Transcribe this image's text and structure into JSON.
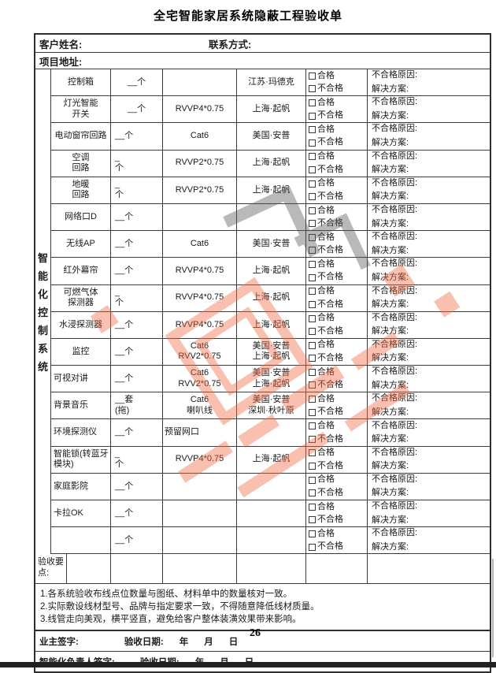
{
  "title": "全宅智能家居系统隐蔽工程验收单",
  "header": {
    "customer_label": "客户姓名:",
    "contact_label": "联系方式:",
    "address_label": "项目地址:"
  },
  "system_label": "智能化控制系统",
  "check": {
    "pass": "合格",
    "fail": "不合格"
  },
  "reason": {
    "line1": "不合格原因:",
    "line2": "解决方案:"
  },
  "rows": [
    {
      "device": "控制箱",
      "qty": "__个",
      "cable": "",
      "brand": "江苏·玛德克",
      "qty_center": true
    },
    {
      "device": "灯光智能\n开关",
      "qty": "__个",
      "cable": "RVVP4*0.75",
      "brand": "上海·起帆",
      "qty_center": true
    },
    {
      "device": "电动窗帘回路",
      "qty": "__个",
      "cable": "Cat6",
      "brand": "美国·安普"
    },
    {
      "device": "空调\n回路",
      "qty": "_\n个",
      "cable": "RVVP2*0.75",
      "brand": "上海·起帆"
    },
    {
      "device": "地暖\n回路",
      "qty": "_\n个",
      "cable": "RVVP2*0.75",
      "brand": "上海·起帆"
    },
    {
      "device": "网络口D",
      "qty": "__个",
      "cable": "",
      "brand": ""
    },
    {
      "device": "无线AP",
      "qty": "__个",
      "cable": "Cat6",
      "brand": "美国·安普"
    },
    {
      "device": "红外幕帘",
      "qty": "__个",
      "cable": "RVVP4*0.75",
      "brand": "上海·起帆"
    },
    {
      "device": "可燃气体\n探测器",
      "qty": "_\n个",
      "cable": "RVVP4*0.75",
      "brand": "上海·起帆"
    },
    {
      "device": "水浸探测器",
      "qty": "__个",
      "cable": "RVVP4*0.75",
      "brand": "上海·起帆"
    },
    {
      "device": "监控",
      "qty": "__个",
      "cable": "Cat6\nRVV2*0.75",
      "brand": "美国·安普\n上海·起帆"
    },
    {
      "device": "可视对讲",
      "qty": "__个",
      "cable": "Cat6\nRVV2*0.75",
      "brand": "美国·安普\n上海·起帆",
      "dev_left": true
    },
    {
      "device": "背景音乐",
      "qty": "__套\n(拖)",
      "cable": "Cat6\n喇叭线",
      "brand": "美国·安普\n深圳·秋叶原",
      "dev_left": true
    },
    {
      "device": "环境探测仪",
      "qty": "__个",
      "cable": "预留网口",
      "brand": "",
      "dev_left": true,
      "cable_left": true
    },
    {
      "device": "智能锁(转蓝牙模块)",
      "qty": "_\n个",
      "cable": "RVVP4*0.75",
      "brand": "上海·起帆",
      "dev_left": true
    },
    {
      "device": "家庭影院",
      "qty": "__个",
      "cable": "",
      "brand": "",
      "dev_left": true
    },
    {
      "device": "卡拉OK",
      "qty": "__个",
      "cable": "",
      "brand": "",
      "dev_left": true
    },
    {
      "device": "",
      "qty": "__个",
      "cable": "",
      "brand": ""
    }
  ],
  "keypoints_label": "验收要点:",
  "notes": [
    "1.各系统验收布线点位数量与图纸、材料单中的数量核对一致。",
    "2.实际敷设线材型号、品牌与指定要求一致，不得随意降低线材质量。",
    "3.线管走向美观，横平竖直，避免给客户整体装潢效果带来影响。"
  ],
  "signatures": [
    {
      "label": "业主签字:",
      "date_label": "验收日期:",
      "year": "年",
      "month": "月",
      "day": "日"
    },
    {
      "label": "智能化负责人签字:",
      "date_label": "验收日期:",
      "year": "年",
      "month": "月",
      "day": "日"
    }
  ],
  "page_number": "26",
  "watermark": {
    "color": "#f26a45",
    "accent": "#5a5a5a"
  }
}
